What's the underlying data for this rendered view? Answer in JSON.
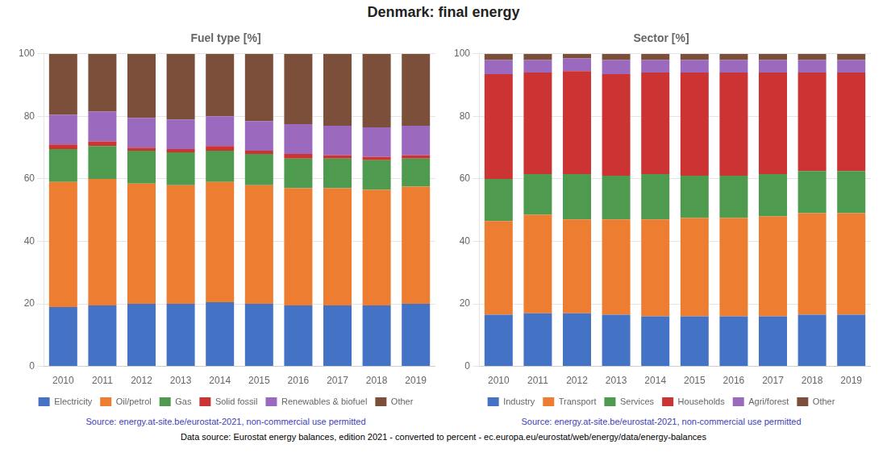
{
  "title": "Denmark: final energy",
  "annotations": [
    {
      "text": "Data source: Eurostat energy balances, edition 2021 - converted to percent - ec.europa.eu/eurostat/web/energy/data/energy-balances"
    }
  ],
  "chart_data": [
    {
      "type": "bar",
      "title": "Fuel type [%]",
      "stacked": true,
      "grid": true,
      "legend": "bottom",
      "categories": [
        "2010",
        "2011",
        "2012",
        "2013",
        "2014",
        "2015",
        "2016",
        "2017",
        "2018",
        "2019"
      ],
      "ylim": [
        0,
        100
      ],
      "yticks": [
        0,
        20,
        40,
        60,
        80,
        100
      ],
      "series": [
        {
          "name": "Electricity",
          "color": "#4472c4",
          "values": [
            19.0,
            19.5,
            20.0,
            20.0,
            20.5,
            20.0,
            19.5,
            19.5,
            19.5,
            20.0
          ]
        },
        {
          "name": "Oil/petrol",
          "color": "#ed7d31",
          "values": [
            40.0,
            40.5,
            38.5,
            38.0,
            38.5,
            38.0,
            37.5,
            37.5,
            37.0,
            37.5
          ]
        },
        {
          "name": "Gas",
          "color": "#4e9a4e",
          "values": [
            10.5,
            10.5,
            10.5,
            10.5,
            10.0,
            10.0,
            9.5,
            9.5,
            9.5,
            9.0
          ]
        },
        {
          "name": "Solid fossil",
          "color": "#cc3333",
          "values": [
            1.5,
            1.5,
            1.0,
            1.0,
            1.5,
            1.0,
            1.5,
            1.0,
            1.0,
            1.0
          ]
        },
        {
          "name": "Renewables & biofuel",
          "color": "#9b6abf",
          "values": [
            9.5,
            9.5,
            9.5,
            9.5,
            9.5,
            9.5,
            9.5,
            9.5,
            9.5,
            9.5
          ]
        },
        {
          "name": "Other",
          "color": "#7b4f3a",
          "values": [
            19.5,
            18.5,
            20.5,
            21.0,
            20.0,
            21.5,
            22.5,
            23.0,
            23.5,
            23.0
          ]
        }
      ],
      "annotations": [
        {
          "text": "Source: energy.at-site.be/eurostat-2021, non-commercial use permitted",
          "color": "#4040bb"
        }
      ]
    },
    {
      "type": "bar",
      "title": "Sector [%]",
      "stacked": true,
      "grid": true,
      "legend": "bottom",
      "categories": [
        "2010",
        "2011",
        "2012",
        "2013",
        "2014",
        "2015",
        "2016",
        "2017",
        "2018",
        "2019"
      ],
      "ylim": [
        0,
        100
      ],
      "yticks": [
        0,
        20,
        40,
        60,
        80,
        100
      ],
      "series": [
        {
          "name": "Industry",
          "color": "#4472c4",
          "values": [
            16.5,
            17.0,
            17.0,
            16.5,
            16.0,
            16.0,
            16.0,
            16.0,
            16.5,
            16.5
          ]
        },
        {
          "name": "Transport",
          "color": "#ed7d31",
          "values": [
            30.0,
            31.5,
            30.0,
            30.5,
            31.0,
            31.5,
            31.5,
            32.0,
            32.5,
            32.5
          ]
        },
        {
          "name": "Services",
          "color": "#4e9a4e",
          "values": [
            13.5,
            13.0,
            14.5,
            14.0,
            14.5,
            13.5,
            13.5,
            13.5,
            13.5,
            13.5
          ]
        },
        {
          "name": "Households",
          "color": "#cc3333",
          "values": [
            33.5,
            32.5,
            33.0,
            32.5,
            32.5,
            33.0,
            33.0,
            32.5,
            31.5,
            31.5
          ]
        },
        {
          "name": "Agri/forest",
          "color": "#9b6abf",
          "values": [
            4.5,
            4.0,
            4.0,
            4.5,
            4.0,
            4.0,
            4.0,
            4.0,
            4.0,
            4.0
          ]
        },
        {
          "name": "Other",
          "color": "#7b4f3a",
          "values": [
            2.0,
            2.0,
            1.5,
            2.0,
            2.0,
            2.0,
            2.0,
            2.0,
            2.0,
            2.0
          ]
        }
      ],
      "annotations": [
        {
          "text": "Source: energy.at-site.be/eurostat-2021, non-commercial use permitted",
          "color": "#4040bb"
        }
      ]
    }
  ]
}
